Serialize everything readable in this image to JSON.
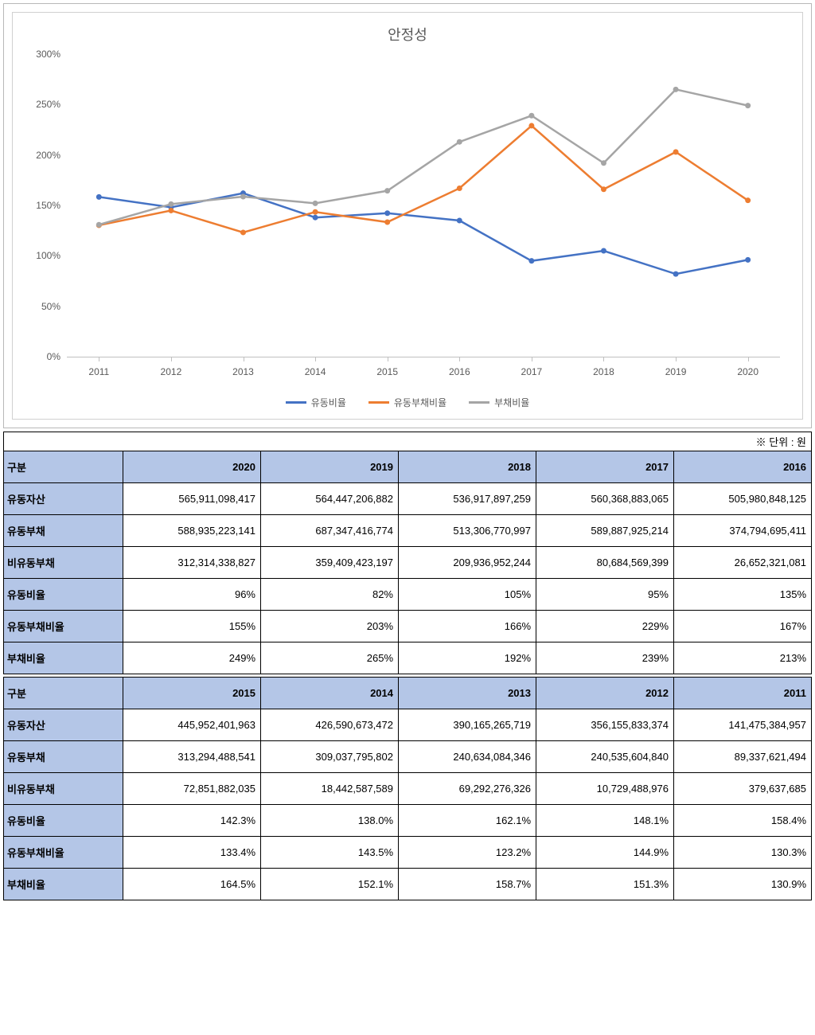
{
  "chart": {
    "title": "안정성",
    "type": "line",
    "title_fontsize": 18,
    "title_color": "#595959",
    "background_color": "#ffffff",
    "border_color": "#d0d0d0",
    "outer_border_color": "#b8b8b8",
    "axis_color": "#bfbfbf",
    "label_fontsize": 12,
    "label_color": "#595959",
    "x_categories": [
      "2011",
      "2012",
      "2013",
      "2014",
      "2015",
      "2016",
      "2017",
      "2018",
      "2019",
      "2020"
    ],
    "ylim": [
      0,
      300
    ],
    "ytick_step": 50,
    "ytick_suffix": "%",
    "line_width": 2.5,
    "marker_radius": 3.5,
    "series": [
      {
        "name": "유동비율",
        "color": "#4472c4",
        "values": [
          158.4,
          148.1,
          162.1,
          138.0,
          142.3,
          135,
          95,
          105,
          82,
          96
        ]
      },
      {
        "name": "유동부채비율",
        "color": "#ed7d31",
        "values": [
          130.3,
          144.9,
          123.2,
          143.5,
          133.4,
          167,
          229,
          166,
          203,
          155
        ]
      },
      {
        "name": "부채비율",
        "color": "#a5a5a5",
        "values": [
          130.9,
          151.3,
          158.7,
          152.1,
          164.5,
          213,
          239,
          192,
          265,
          249
        ]
      }
    ]
  },
  "unit_note": "※ 단위 : 원",
  "table1": {
    "corner": "구분",
    "col_bg": "#b4c6e7",
    "years": [
      "2020",
      "2019",
      "2018",
      "2017",
      "2016"
    ],
    "rows": [
      {
        "label": "유동자산",
        "cells": [
          "565,911,098,417",
          "564,447,206,882",
          "536,917,897,259",
          "560,368,883,065",
          "505,980,848,125"
        ]
      },
      {
        "label": "유동부채",
        "cells": [
          "588,935,223,141",
          "687,347,416,774",
          "513,306,770,997",
          "589,887,925,214",
          "374,794,695,411"
        ]
      },
      {
        "label": "비유동부채",
        "cells": [
          "312,314,338,827",
          "359,409,423,197",
          "209,936,952,244",
          "80,684,569,399",
          "26,652,321,081"
        ]
      },
      {
        "label": "유동비율",
        "cells": [
          "96%",
          "82%",
          "105%",
          "95%",
          "135%"
        ]
      },
      {
        "label": "유동부채비율",
        "cells": [
          "155%",
          "203%",
          "166%",
          "229%",
          "167%"
        ]
      },
      {
        "label": "부채비율",
        "cells": [
          "249%",
          "265%",
          "192%",
          "239%",
          "213%"
        ]
      }
    ]
  },
  "table2": {
    "corner": "구분",
    "years": [
      "2015",
      "2014",
      "2013",
      "2012",
      "2011"
    ],
    "rows": [
      {
        "label": "유동자산",
        "cells": [
          "445,952,401,963",
          "426,590,673,472",
          "390,165,265,719",
          "356,155,833,374",
          "141,475,384,957"
        ]
      },
      {
        "label": "유동부채",
        "cells": [
          "313,294,488,541",
          "309,037,795,802",
          "240,634,084,346",
          "240,535,604,840",
          "89,337,621,494"
        ]
      },
      {
        "label": "비유동부채",
        "cells": [
          "72,851,882,035",
          "18,442,587,589",
          "69,292,276,326",
          "10,729,488,976",
          "379,637,685"
        ]
      },
      {
        "label": "유동비율",
        "cells": [
          "142.3%",
          "138.0%",
          "162.1%",
          "148.1%",
          "158.4%"
        ]
      },
      {
        "label": "유동부채비율",
        "cells": [
          "133.4%",
          "143.5%",
          "123.2%",
          "144.9%",
          "130.3%"
        ]
      },
      {
        "label": "부채비율",
        "cells": [
          "164.5%",
          "152.1%",
          "158.7%",
          "151.3%",
          "130.9%"
        ]
      }
    ]
  }
}
